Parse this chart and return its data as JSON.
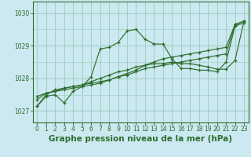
{
  "background_color": "#cce8f0",
  "grid_color": "#99ccbb",
  "line_color": "#2d6e2d",
  "xlabel": "Graphe pression niveau de la mer (hPa)",
  "xlabel_fontsize": 7.5,
  "ytick_labels": [
    "1027",
    "1028",
    "1029",
    "1030"
  ],
  "yticks": [
    1027,
    1028,
    1029,
    1030
  ],
  "ylim": [
    1026.65,
    1030.35
  ],
  "xlim": [
    -0.5,
    23.5
  ],
  "xticks": [
    0,
    1,
    2,
    3,
    4,
    5,
    6,
    7,
    8,
    9,
    10,
    11,
    12,
    13,
    14,
    15,
    16,
    17,
    18,
    19,
    20,
    21,
    22,
    23
  ],
  "series": [
    [
      1027.15,
      1027.5,
      1027.65,
      1027.7,
      1027.75,
      1027.8,
      1027.85,
      1027.9,
      1027.95,
      1028.05,
      1028.1,
      1028.2,
      1028.3,
      1028.35,
      1028.4,
      1028.45,
      1028.5,
      1028.55,
      1028.6,
      1028.65,
      1028.7,
      1028.75,
      1029.65,
      1029.75
    ],
    [
      1027.35,
      1027.55,
      1027.6,
      1027.65,
      1027.7,
      1027.75,
      1028.05,
      1028.9,
      1028.95,
      1029.1,
      1029.45,
      1029.5,
      1029.2,
      1029.05,
      1029.05,
      1028.6,
      1028.3,
      1028.3,
      1028.25,
      1028.25,
      1028.2,
      1028.5,
      1029.6,
      1029.7
    ],
    [
      1027.45,
      1027.55,
      1027.6,
      1027.7,
      1027.75,
      1027.8,
      1027.9,
      1028.0,
      1028.1,
      1028.2,
      1028.25,
      1028.35,
      1028.4,
      1028.45,
      1028.45,
      1028.5,
      1028.45,
      1028.45,
      1028.4,
      1028.35,
      1028.28,
      1028.28,
      1028.55,
      1029.75
    ],
    [
      1027.15,
      1027.45,
      1027.5,
      1027.25,
      1027.6,
      1027.75,
      1027.8,
      1027.85,
      1027.95,
      1028.05,
      1028.15,
      1028.25,
      1028.4,
      1028.5,
      1028.6,
      1028.65,
      1028.7,
      1028.75,
      1028.8,
      1028.85,
      1028.9,
      1028.95,
      1029.65,
      1029.75
    ]
  ]
}
